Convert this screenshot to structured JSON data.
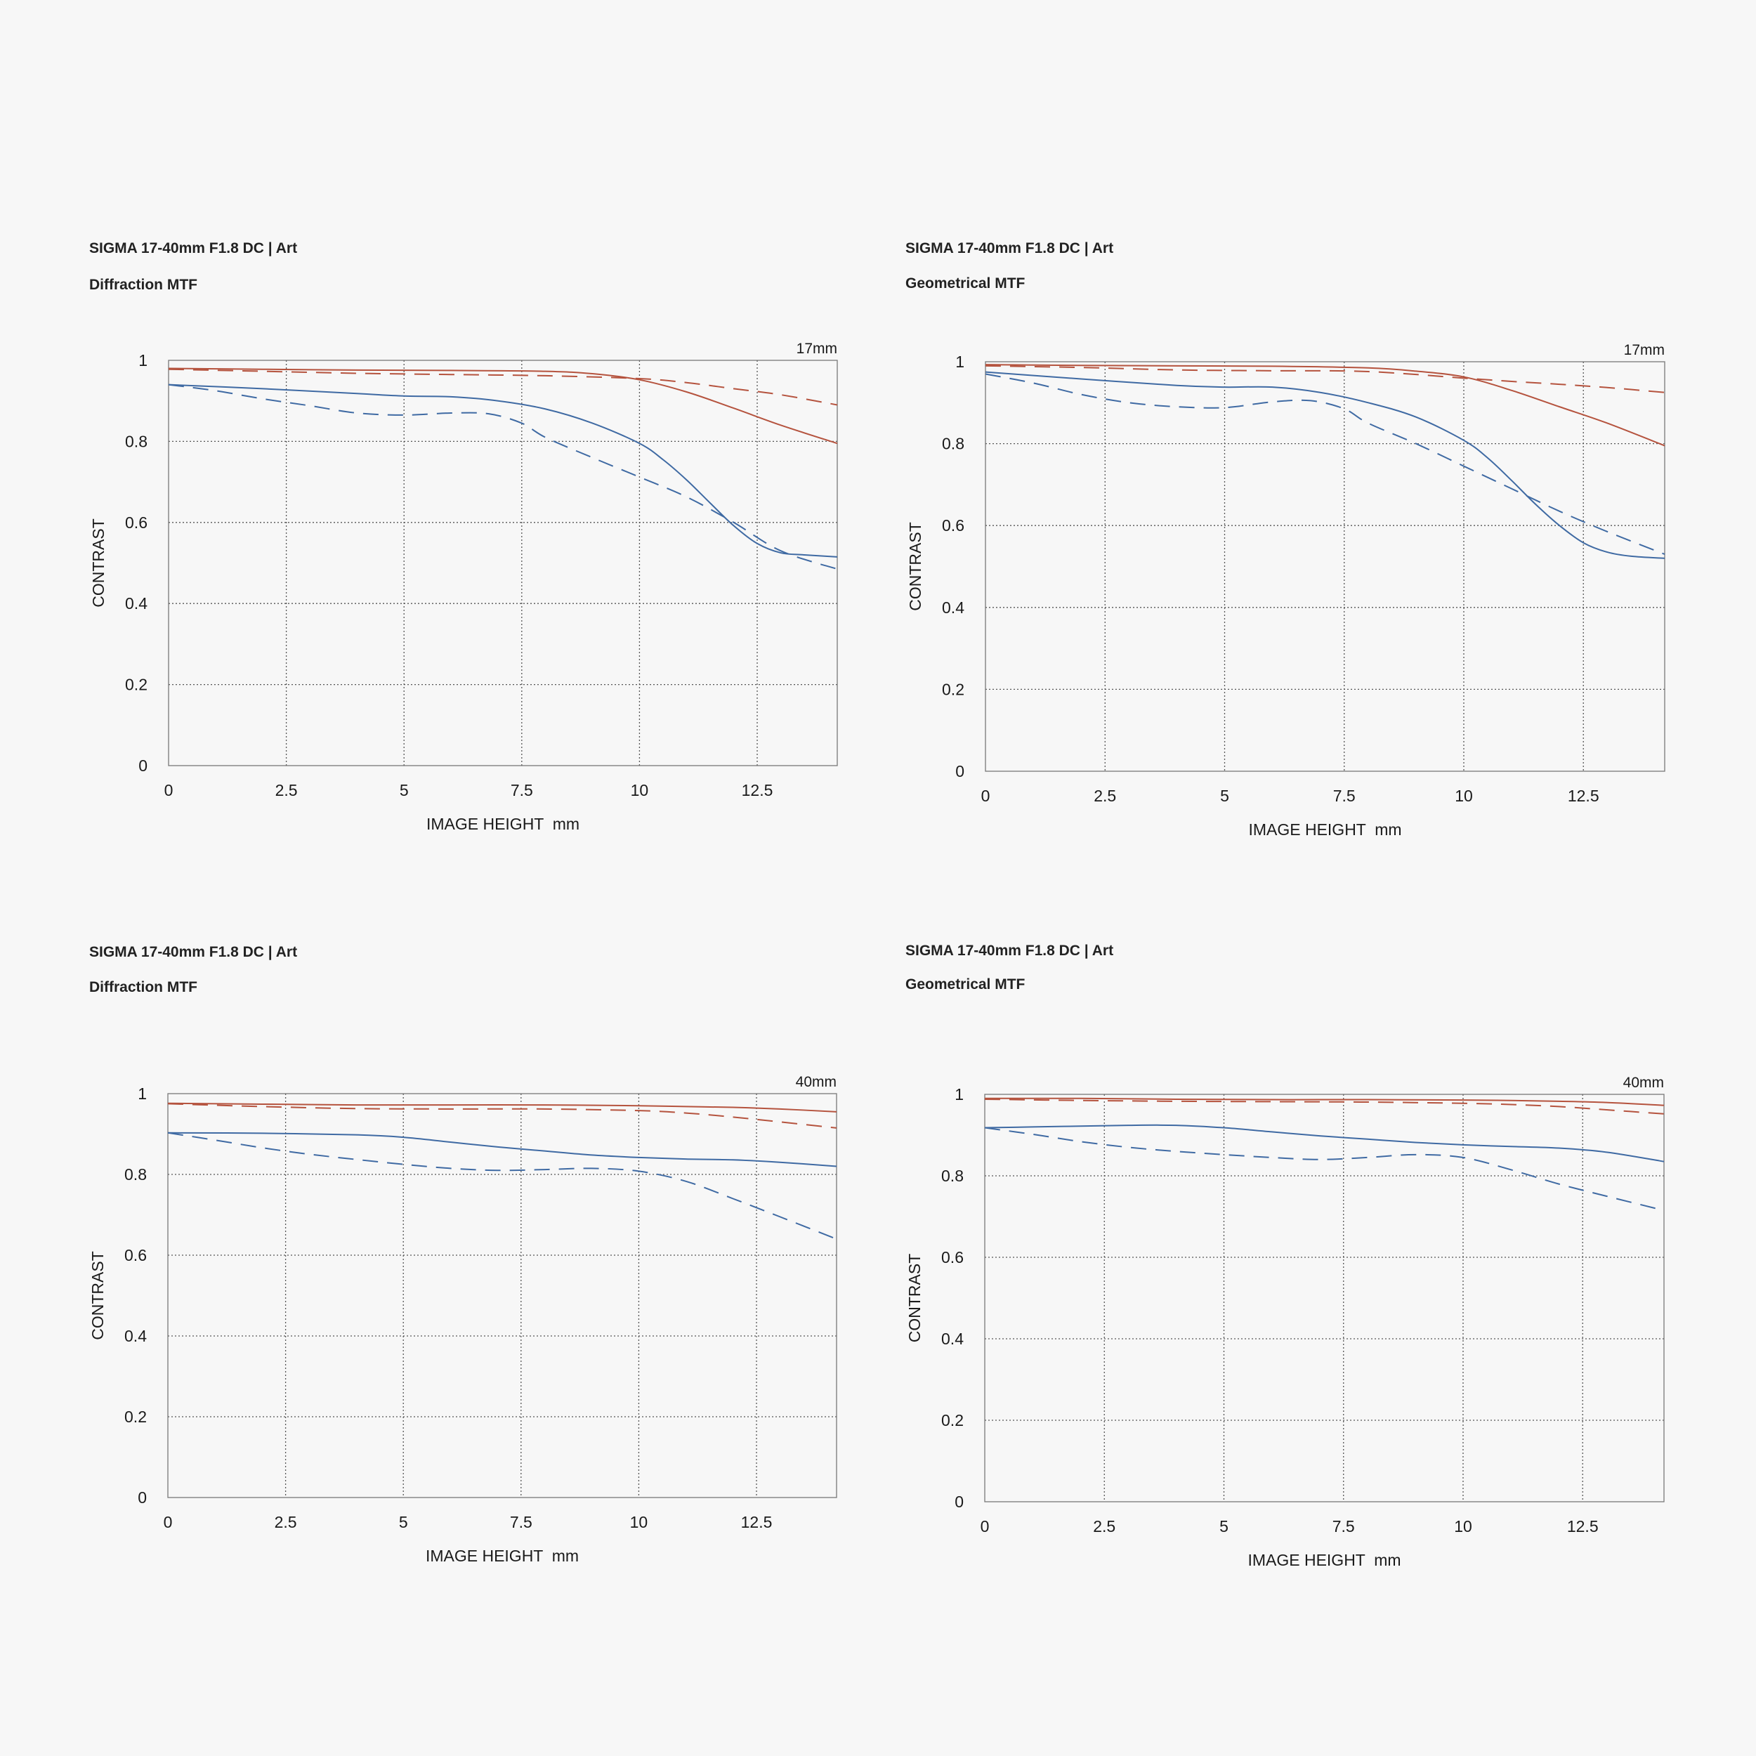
{
  "colors": {
    "background": "#f7f7f7",
    "sagittal_red": "#b5533e",
    "meridional_blue": "#3f6aa3",
    "grid": "#555555",
    "frame": "#777777"
  },
  "chart_data": [
    {
      "type": "line",
      "lens": "SIGMA 17-40mm F1.8 DC | Art",
      "subtitle": "Diffraction MTF",
      "focal": "17mm",
      "xlabel": "IMAGE HEIGHT  mm",
      "ylabel": "CONTRAST",
      "xlim": [
        0,
        14.2
      ],
      "ylim": [
        0,
        1
      ],
      "xticks": [
        0,
        2.5,
        5,
        7.5,
        10,
        12.5
      ],
      "xtick_labels": [
        "0",
        "2.5",
        "5",
        "7.5",
        "10",
        "12.5"
      ],
      "yticks": [
        0,
        0.2,
        0.4,
        0.6,
        0.8,
        1
      ],
      "ytick_labels": [
        "0",
        "0.2",
        "0.4",
        "0.6",
        "0.8",
        "1"
      ],
      "grid": true,
      "series": [
        {
          "color": "#b5533e",
          "dash": false,
          "x": [
            0,
            2,
            4,
            6,
            8,
            9,
            10,
            11,
            12,
            13,
            14.2
          ],
          "y": [
            0.98,
            0.978,
            0.976,
            0.975,
            0.973,
            0.967,
            0.952,
            0.922,
            0.882,
            0.84,
            0.795
          ]
        },
        {
          "color": "#b5533e",
          "dash": true,
          "x": [
            0,
            2,
            4,
            6,
            8,
            10,
            11,
            12,
            13,
            14.2
          ],
          "y": [
            0.978,
            0.973,
            0.968,
            0.965,
            0.962,
            0.955,
            0.945,
            0.93,
            0.915,
            0.89
          ]
        },
        {
          "color": "#3f6aa3",
          "dash": false,
          "x": [
            0,
            2,
            4,
            5,
            6,
            7,
            8,
            9,
            10,
            10.5,
            11,
            11.5,
            12,
            12.5,
            13,
            13.5,
            14.2
          ],
          "y": [
            0.94,
            0.93,
            0.918,
            0.912,
            0.91,
            0.9,
            0.88,
            0.845,
            0.795,
            0.755,
            0.705,
            0.648,
            0.592,
            0.548,
            0.525,
            0.52,
            0.515
          ]
        },
        {
          "color": "#3f6aa3",
          "dash": true,
          "x": [
            0,
            1,
            2,
            3,
            4,
            5,
            6,
            6.8,
            7.5,
            8,
            9,
            10,
            11,
            12,
            13,
            14.2
          ],
          "y": [
            0.94,
            0.925,
            0.905,
            0.888,
            0.87,
            0.865,
            0.87,
            0.868,
            0.845,
            0.81,
            0.76,
            0.712,
            0.663,
            0.6,
            0.53,
            0.485
          ]
        }
      ]
    },
    {
      "type": "line",
      "lens": "SIGMA 17-40mm F1.8 DC | Art",
      "subtitle": "Geometrical MTF",
      "focal": "17mm",
      "xlabel": "IMAGE HEIGHT  mm",
      "ylabel": "CONTRAST",
      "xlim": [
        0,
        14.2
      ],
      "ylim": [
        0,
        1
      ],
      "xticks": [
        0,
        2.5,
        5,
        7.5,
        10,
        12.5
      ],
      "xtick_labels": [
        "0",
        "2.5",
        "5",
        "7.5",
        "10",
        "12.5"
      ],
      "yticks": [
        0,
        0.2,
        0.4,
        0.6,
        0.8,
        1
      ],
      "ytick_labels": [
        "0",
        "0.2",
        "0.4",
        "0.6",
        "0.8",
        "1"
      ],
      "grid": true,
      "series": [
        {
          "color": "#b5533e",
          "dash": false,
          "x": [
            0,
            2,
            4,
            6,
            8,
            9,
            10,
            11,
            12,
            13,
            14.2
          ],
          "y": [
            0.993,
            0.991,
            0.99,
            0.989,
            0.985,
            0.977,
            0.963,
            0.93,
            0.89,
            0.85,
            0.795
          ]
        },
        {
          "color": "#b5533e",
          "dash": true,
          "x": [
            0,
            2,
            4,
            6,
            8,
            10,
            11,
            12,
            13,
            14.2
          ],
          "y": [
            0.99,
            0.986,
            0.98,
            0.978,
            0.976,
            0.96,
            0.952,
            0.945,
            0.937,
            0.925
          ]
        },
        {
          "color": "#3f6aa3",
          "dash": false,
          "x": [
            0,
            2,
            4,
            5,
            6,
            7,
            8,
            9,
            10,
            10.5,
            11,
            11.5,
            12,
            12.5,
            13,
            13.5,
            14.2
          ],
          "y": [
            0.975,
            0.958,
            0.942,
            0.938,
            0.938,
            0.925,
            0.9,
            0.865,
            0.808,
            0.765,
            0.71,
            0.652,
            0.6,
            0.558,
            0.535,
            0.525,
            0.52
          ]
        },
        {
          "color": "#3f6aa3",
          "dash": true,
          "x": [
            0,
            1,
            2,
            3,
            4,
            5,
            6,
            6.8,
            7.5,
            8,
            9,
            10,
            11,
            12,
            13,
            14.2
          ],
          "y": [
            0.97,
            0.948,
            0.92,
            0.9,
            0.89,
            0.888,
            0.902,
            0.905,
            0.885,
            0.85,
            0.8,
            0.745,
            0.69,
            0.635,
            0.585,
            0.53
          ]
        }
      ]
    },
    {
      "type": "line",
      "lens": "SIGMA 17-40mm F1.8 DC | Art",
      "subtitle": "Diffraction MTF",
      "focal": "40mm",
      "xlabel": "IMAGE HEIGHT  mm",
      "ylabel": "CONTRAST",
      "xlim": [
        0,
        14.2
      ],
      "ylim": [
        0,
        1
      ],
      "xticks": [
        0,
        2.5,
        5,
        7.5,
        10,
        12.5
      ],
      "xtick_labels": [
        "0",
        "2.5",
        "5",
        "7.5",
        "10",
        "12.5"
      ],
      "yticks": [
        0,
        0.2,
        0.4,
        0.6,
        0.8,
        1
      ],
      "ytick_labels": [
        "0",
        "0.2",
        "0.4",
        "0.6",
        "0.8",
        "1"
      ],
      "grid": true,
      "series": [
        {
          "color": "#b5533e",
          "dash": false,
          "x": [
            0,
            2,
            4,
            6,
            8,
            10,
            11,
            12,
            13,
            14.2
          ],
          "y": [
            0.976,
            0.974,
            0.972,
            0.972,
            0.972,
            0.97,
            0.968,
            0.966,
            0.962,
            0.955
          ]
        },
        {
          "color": "#b5533e",
          "dash": true,
          "x": [
            0,
            2,
            4,
            6,
            8,
            10,
            11,
            12,
            13,
            14.2
          ],
          "y": [
            0.975,
            0.968,
            0.963,
            0.962,
            0.962,
            0.958,
            0.952,
            0.942,
            0.93,
            0.915
          ]
        },
        {
          "color": "#3f6aa3",
          "dash": false,
          "x": [
            0,
            2,
            4,
            5,
            6,
            7,
            8,
            9,
            10,
            11,
            12,
            13,
            14.2
          ],
          "y": [
            0.903,
            0.902,
            0.898,
            0.892,
            0.88,
            0.868,
            0.858,
            0.848,
            0.842,
            0.838,
            0.836,
            0.83,
            0.82
          ]
        },
        {
          "color": "#3f6aa3",
          "dash": true,
          "x": [
            0,
            1,
            2,
            3,
            4,
            5,
            6,
            7,
            8,
            9,
            10,
            11,
            12,
            13,
            14.2
          ],
          "y": [
            0.903,
            0.885,
            0.866,
            0.85,
            0.837,
            0.825,
            0.815,
            0.81,
            0.812,
            0.815,
            0.808,
            0.783,
            0.74,
            0.695,
            0.64
          ]
        }
      ]
    },
    {
      "type": "line",
      "lens": "SIGMA 17-40mm F1.8 DC | Art",
      "subtitle": "Geometrical MTF",
      "focal": "40mm",
      "xlabel": "IMAGE HEIGHT  mm",
      "ylabel": "CONTRAST",
      "xlim": [
        0,
        14.2
      ],
      "ylim": [
        0,
        1
      ],
      "xticks": [
        0,
        2.5,
        5,
        7.5,
        10,
        12.5
      ],
      "xtick_labels": [
        "0",
        "2.5",
        "5",
        "7.5",
        "10",
        "12.5"
      ],
      "yticks": [
        0,
        0.2,
        0.4,
        0.6,
        0.8,
        1
      ],
      "ytick_labels": [
        "0",
        "0.2",
        "0.4",
        "0.6",
        "0.8",
        "1"
      ],
      "grid": true,
      "series": [
        {
          "color": "#b5533e",
          "dash": false,
          "x": [
            0,
            2,
            4,
            6,
            8,
            10,
            11,
            12,
            13,
            14.2
          ],
          "y": [
            0.99,
            0.99,
            0.988,
            0.987,
            0.987,
            0.986,
            0.985,
            0.983,
            0.98,
            0.973
          ]
        },
        {
          "color": "#b5533e",
          "dash": true,
          "x": [
            0,
            2,
            4,
            6,
            8,
            10,
            11,
            12,
            13,
            14.2
          ],
          "y": [
            0.988,
            0.985,
            0.983,
            0.982,
            0.981,
            0.978,
            0.975,
            0.97,
            0.962,
            0.952
          ]
        },
        {
          "color": "#3f6aa3",
          "dash": false,
          "x": [
            0,
            1,
            2,
            3,
            4,
            5,
            6,
            7,
            8,
            9,
            10,
            11,
            12,
            13,
            14.2
          ],
          "y": [
            0.918,
            0.92,
            0.922,
            0.924,
            0.924,
            0.918,
            0.908,
            0.898,
            0.89,
            0.882,
            0.876,
            0.872,
            0.868,
            0.858,
            0.835
          ]
        },
        {
          "color": "#3f6aa3",
          "dash": true,
          "x": [
            0,
            1,
            2,
            3,
            4,
            5,
            6,
            7,
            8,
            9,
            10,
            11,
            12,
            13,
            14.2
          ],
          "y": [
            0.918,
            0.902,
            0.884,
            0.87,
            0.86,
            0.852,
            0.845,
            0.84,
            0.845,
            0.852,
            0.845,
            0.815,
            0.78,
            0.75,
            0.715
          ]
        }
      ]
    }
  ]
}
